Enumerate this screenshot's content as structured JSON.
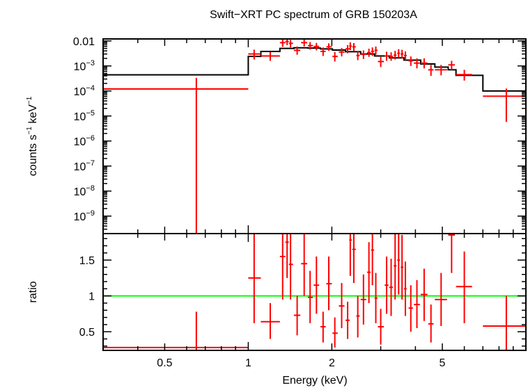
{
  "chart_data": {
    "type": "scatter",
    "title": "Swift−XRT PC spectrum of GRB 150203A",
    "xlabel": "Energy (keV)",
    "x_scale": "log",
    "xlim": [
      0.3,
      10
    ],
    "x_ticks": [
      {
        "v": 0.5,
        "label": "0.5"
      },
      {
        "v": 1,
        "label": "1"
      },
      {
        "v": 2,
        "label": "2"
      },
      {
        "v": 5,
        "label": "5"
      }
    ],
    "colors": {
      "data": "#ff0000",
      "model": "#000000",
      "unity": "#00ff00"
    },
    "panels": {
      "spectrum": {
        "ylabel_parts": {
          "a": "counts s",
          "a_sup": "−1",
          "b": " keV",
          "b_sup": "−1"
        },
        "y_scale": "log",
        "ylim": [
          2e-10,
          0.012
        ],
        "y_ticks": [
          {
            "v": 0.01,
            "label": "0.01"
          },
          {
            "v": 0.001,
            "base": "10",
            "exp": "−3"
          },
          {
            "v": 0.0001,
            "base": "10",
            "exp": "−4"
          },
          {
            "v": 1e-05,
            "base": "10",
            "exp": "−5"
          },
          {
            "v": 1e-06,
            "base": "10",
            "exp": "−6"
          },
          {
            "v": 1e-07,
            "base": "10",
            "exp": "−7"
          },
          {
            "v": 1e-08,
            "base": "10",
            "exp": "−8"
          },
          {
            "v": 1e-09,
            "base": "10",
            "exp": "−9"
          }
        ],
        "points": [
          {
            "x": 0.65,
            "xlo": 0.3,
            "xhi": 1.0,
            "y": 0.00012,
            "ylo": 2e-10,
            "yhi": 0.00033
          },
          {
            "x": 1.05,
            "xlo": 1.0,
            "xhi": 1.11,
            "y": 0.003,
            "ylo": 0.0018,
            "yhi": 0.0045
          },
          {
            "x": 1.2,
            "xlo": 1.11,
            "xhi": 1.3,
            "y": 0.0025,
            "ylo": 0.0016,
            "yhi": 0.0036
          },
          {
            "x": 1.33,
            "xlo": 1.3,
            "xhi": 1.36,
            "y": 0.0085,
            "ylo": 0.0058,
            "yhi": 0.0118
          },
          {
            "x": 1.38,
            "xlo": 1.36,
            "xhi": 1.4,
            "y": 0.0095,
            "ylo": 0.0068,
            "yhi": 0.0118
          },
          {
            "x": 1.42,
            "xlo": 1.4,
            "xhi": 1.45,
            "y": 0.008,
            "ylo": 0.0055,
            "yhi": 0.011
          },
          {
            "x": 1.5,
            "xlo": 1.46,
            "xhi": 1.54,
            "y": 0.0042,
            "ylo": 0.0028,
            "yhi": 0.006
          },
          {
            "x": 1.59,
            "xlo": 1.55,
            "xhi": 1.63,
            "y": 0.0085,
            "ylo": 0.006,
            "yhi": 0.0115
          },
          {
            "x": 1.67,
            "xlo": 1.64,
            "xhi": 1.71,
            "y": 0.0065,
            "ylo": 0.0045,
            "yhi": 0.009
          },
          {
            "x": 1.76,
            "xlo": 1.72,
            "xhi": 1.8,
            "y": 0.006,
            "ylo": 0.0042,
            "yhi": 0.0083
          },
          {
            "x": 1.86,
            "xlo": 1.82,
            "xhi": 1.9,
            "y": 0.0038,
            "ylo": 0.0025,
            "yhi": 0.0055
          },
          {
            "x": 1.95,
            "xlo": 1.91,
            "xhi": 2.0,
            "y": 0.0058,
            "ylo": 0.004,
            "yhi": 0.008
          },
          {
            "x": 2.05,
            "xlo": 2.01,
            "xhi": 2.1,
            "y": 0.0024,
            "ylo": 0.0015,
            "yhi": 0.0036
          },
          {
            "x": 2.17,
            "xlo": 2.12,
            "xhi": 2.22,
            "y": 0.0036,
            "ylo": 0.0024,
            "yhi": 0.0052
          },
          {
            "x": 2.28,
            "xlo": 2.24,
            "xhi": 2.32,
            "y": 0.0048,
            "ylo": 0.0032,
            "yhi": 0.0068
          },
          {
            "x": 2.33,
            "xlo": 2.31,
            "xhi": 2.36,
            "y": 0.0062,
            "ylo": 0.0043,
            "yhi": 0.0088
          },
          {
            "x": 2.4,
            "xlo": 2.37,
            "xhi": 2.44,
            "y": 0.0058,
            "ylo": 0.004,
            "yhi": 0.0082
          },
          {
            "x": 2.48,
            "xlo": 2.45,
            "xhi": 2.52,
            "y": 0.0026,
            "ylo": 0.0017,
            "yhi": 0.0038
          },
          {
            "x": 2.6,
            "xlo": 2.54,
            "xhi": 2.66,
            "y": 0.0029,
            "ylo": 0.0019,
            "yhi": 0.0042
          },
          {
            "x": 2.72,
            "xlo": 2.68,
            "xhi": 2.76,
            "y": 0.0034,
            "ylo": 0.0023,
            "yhi": 0.0049
          },
          {
            "x": 2.8,
            "xlo": 2.77,
            "xhi": 2.84,
            "y": 0.0038,
            "ylo": 0.0025,
            "yhi": 0.0055
          },
          {
            "x": 2.88,
            "xlo": 2.85,
            "xhi": 2.92,
            "y": 0.0042,
            "ylo": 0.0028,
            "yhi": 0.006
          },
          {
            "x": 3.0,
            "xlo": 2.93,
            "xhi": 3.08,
            "y": 0.0015,
            "ylo": 0.0009,
            "yhi": 0.0023
          },
          {
            "x": 3.15,
            "xlo": 3.1,
            "xhi": 3.2,
            "y": 0.0025,
            "ylo": 0.0016,
            "yhi": 0.0037
          },
          {
            "x": 3.27,
            "xlo": 3.22,
            "xhi": 3.32,
            "y": 0.0024,
            "ylo": 0.0016,
            "yhi": 0.0035
          },
          {
            "x": 3.38,
            "xlo": 3.34,
            "xhi": 3.42,
            "y": 0.0027,
            "ylo": 0.0018,
            "yhi": 0.004
          },
          {
            "x": 3.48,
            "xlo": 3.44,
            "xhi": 3.52,
            "y": 0.0032,
            "ylo": 0.0021,
            "yhi": 0.0047
          },
          {
            "x": 3.58,
            "xlo": 3.54,
            "xhi": 3.62,
            "y": 0.003,
            "ylo": 0.002,
            "yhi": 0.0044
          },
          {
            "x": 3.68,
            "xlo": 3.64,
            "xhi": 3.72,
            "y": 0.0026,
            "ylo": 0.0017,
            "yhi": 0.0038
          },
          {
            "x": 3.85,
            "xlo": 3.78,
            "xhi": 3.92,
            "y": 0.0016,
            "ylo": 0.001,
            "yhi": 0.0024
          },
          {
            "x": 4.05,
            "xlo": 3.95,
            "xhi": 4.15,
            "y": 0.0013,
            "ylo": 0.0008,
            "yhi": 0.002
          },
          {
            "x": 4.3,
            "xlo": 4.18,
            "xhi": 4.42,
            "y": 0.0013,
            "ylo": 0.0008,
            "yhi": 0.002
          },
          {
            "x": 4.55,
            "xlo": 4.45,
            "xhi": 4.65,
            "y": 0.0007,
            "ylo": 0.0004,
            "yhi": 0.0011
          },
          {
            "x": 4.95,
            "xlo": 4.7,
            "xhi": 5.2,
            "y": 0.0007,
            "ylo": 0.00042,
            "yhi": 0.0011
          },
          {
            "x": 5.4,
            "xlo": 5.25,
            "xhi": 5.55,
            "y": 0.0011,
            "ylo": 0.0007,
            "yhi": 0.0016
          },
          {
            "x": 6.0,
            "xlo": 5.6,
            "xhi": 6.4,
            "y": 0.00045,
            "ylo": 0.00026,
            "yhi": 0.0007
          },
          {
            "x": 8.5,
            "xlo": 7.0,
            "xhi": 10.0,
            "y": 6.2e-05,
            "ylo": 5.8e-06,
            "yhi": 0.000125
          }
        ],
        "model": [
          {
            "x0": 0.3,
            "x1": 1.0,
            "y": 0.00044
          },
          {
            "x0": 1.0,
            "x1": 1.11,
            "y": 0.0024
          },
          {
            "x0": 1.11,
            "x1": 1.3,
            "y": 0.0038
          },
          {
            "x0": 1.3,
            "x1": 1.46,
            "y": 0.005
          },
          {
            "x0": 1.46,
            "x1": 1.64,
            "y": 0.0053
          },
          {
            "x0": 1.64,
            "x1": 1.82,
            "y": 0.0052
          },
          {
            "x0": 1.82,
            "x1": 2.01,
            "y": 0.0048
          },
          {
            "x0": 2.01,
            "x1": 2.24,
            "y": 0.0043
          },
          {
            "x0": 2.24,
            "x1": 2.54,
            "y": 0.0037
          },
          {
            "x0": 2.54,
            "x1": 2.85,
            "y": 0.003
          },
          {
            "x0": 2.85,
            "x1": 3.22,
            "y": 0.0025
          },
          {
            "x0": 3.22,
            "x1": 3.64,
            "y": 0.0021
          },
          {
            "x0": 3.64,
            "x1": 4.18,
            "y": 0.0017
          },
          {
            "x0": 4.18,
            "x1": 4.7,
            "y": 0.0012
          },
          {
            "x0": 4.7,
            "x1": 5.25,
            "y": 0.0009
          },
          {
            "x0": 5.25,
            "x1": 5.6,
            "y": 0.0007
          },
          {
            "x0": 5.6,
            "x1": 7.0,
            "y": 0.00042
          },
          {
            "x0": 7.0,
            "x1": 10.0,
            "y": 0.0001
          }
        ]
      },
      "ratio": {
        "ylabel": "ratio",
        "y_scale": "linear",
        "ylim": [
          0.24,
          1.87
        ],
        "y_ticks": [
          {
            "v": 0.5,
            "label": "0.5"
          },
          {
            "v": 1,
            "label": "1"
          },
          {
            "v": 1.5,
            "label": "1.5"
          }
        ],
        "unity": 1.0,
        "points": [
          {
            "x": 0.65,
            "xlo": 0.3,
            "xhi": 1.0,
            "y": 0.28,
            "ylo": 0.24,
            "yhi": 0.78
          },
          {
            "x": 1.05,
            "xlo": 1.0,
            "xhi": 1.11,
            "y": 1.25,
            "ylo": 0.62,
            "yhi": 1.87
          },
          {
            "x": 1.2,
            "xlo": 1.11,
            "xhi": 1.3,
            "y": 0.64,
            "ylo": 0.4,
            "yhi": 0.9
          },
          {
            "x": 1.33,
            "xlo": 1.3,
            "xhi": 1.36,
            "y": 1.55,
            "ylo": 0.95,
            "yhi": 1.87
          },
          {
            "x": 1.38,
            "xlo": 1.36,
            "xhi": 1.4,
            "y": 1.75,
            "ylo": 1.25,
            "yhi": 1.87
          },
          {
            "x": 1.42,
            "xlo": 1.4,
            "xhi": 1.45,
            "y": 1.44,
            "ylo": 0.95,
            "yhi": 1.87
          },
          {
            "x": 1.5,
            "xlo": 1.46,
            "xhi": 1.54,
            "y": 0.73,
            "ylo": 0.45,
            "yhi": 1.0
          },
          {
            "x": 1.59,
            "xlo": 1.55,
            "xhi": 1.63,
            "y": 1.45,
            "ylo": 1.0,
            "yhi": 1.87
          },
          {
            "x": 1.67,
            "xlo": 1.64,
            "xhi": 1.71,
            "y": 0.98,
            "ylo": 0.62,
            "yhi": 1.35
          },
          {
            "x": 1.76,
            "xlo": 1.72,
            "xhi": 1.8,
            "y": 1.15,
            "ylo": 0.75,
            "yhi": 1.55
          },
          {
            "x": 1.86,
            "xlo": 1.82,
            "xhi": 1.9,
            "y": 0.57,
            "ylo": 0.35,
            "yhi": 0.78
          },
          {
            "x": 1.95,
            "xlo": 1.91,
            "xhi": 2.0,
            "y": 1.17,
            "ylo": 0.8,
            "yhi": 1.55
          },
          {
            "x": 2.05,
            "xlo": 2.01,
            "xhi": 2.1,
            "y": 0.48,
            "ylo": 0.28,
            "yhi": 0.7
          },
          {
            "x": 2.17,
            "xlo": 2.12,
            "xhi": 2.22,
            "y": 0.86,
            "ylo": 0.55,
            "yhi": 1.18
          },
          {
            "x": 2.28,
            "xlo": 2.24,
            "xhi": 2.32,
            "y": 0.66,
            "ylo": 0.4,
            "yhi": 0.92
          },
          {
            "x": 2.33,
            "xlo": 2.31,
            "xhi": 2.36,
            "y": 1.78,
            "ylo": 1.28,
            "yhi": 1.87
          },
          {
            "x": 2.4,
            "xlo": 2.37,
            "xhi": 2.44,
            "y": 1.65,
            "ylo": 1.18,
            "yhi": 1.87
          },
          {
            "x": 2.48,
            "xlo": 2.45,
            "xhi": 2.52,
            "y": 0.72,
            "ylo": 0.42,
            "yhi": 1.0
          },
          {
            "x": 2.6,
            "xlo": 2.54,
            "xhi": 2.66,
            "y": 0.95,
            "ylo": 0.6,
            "yhi": 1.3
          },
          {
            "x": 2.72,
            "xlo": 2.68,
            "xhi": 2.76,
            "y": 1.33,
            "ylo": 0.9,
            "yhi": 1.75
          },
          {
            "x": 2.8,
            "xlo": 2.77,
            "xhi": 2.84,
            "y": 1.64,
            "ylo": 1.15,
            "yhi": 1.87
          },
          {
            "x": 2.88,
            "xlo": 2.85,
            "xhi": 2.92,
            "y": 0.97,
            "ylo": 0.62,
            "yhi": 1.32
          },
          {
            "x": 3.0,
            "xlo": 2.93,
            "xhi": 3.08,
            "y": 0.57,
            "ylo": 0.32,
            "yhi": 0.82
          },
          {
            "x": 3.15,
            "xlo": 3.1,
            "xhi": 3.2,
            "y": 1.15,
            "ylo": 0.75,
            "yhi": 1.55
          },
          {
            "x": 3.27,
            "xlo": 3.22,
            "xhi": 3.32,
            "y": 1.12,
            "ylo": 0.72,
            "yhi": 1.52
          },
          {
            "x": 3.38,
            "xlo": 3.34,
            "xhi": 3.42,
            "y": 1.42,
            "ylo": 0.95,
            "yhi": 1.87
          },
          {
            "x": 3.48,
            "xlo": 3.44,
            "xhi": 3.52,
            "y": 1.5,
            "ylo": 1.02,
            "yhi": 1.87
          },
          {
            "x": 3.58,
            "xlo": 3.54,
            "xhi": 3.62,
            "y": 1.4,
            "ylo": 0.95,
            "yhi": 1.85
          },
          {
            "x": 3.68,
            "xlo": 3.64,
            "xhi": 3.72,
            "y": 1.1,
            "ylo": 0.72,
            "yhi": 1.48
          },
          {
            "x": 3.85,
            "xlo": 3.78,
            "xhi": 3.92,
            "y": 0.83,
            "ylo": 0.5,
            "yhi": 1.15
          },
          {
            "x": 4.05,
            "xlo": 3.95,
            "xhi": 4.15,
            "y": 0.88,
            "ylo": 0.55,
            "yhi": 1.22
          },
          {
            "x": 4.3,
            "xlo": 4.18,
            "xhi": 4.42,
            "y": 1.02,
            "ylo": 0.65,
            "yhi": 1.38
          },
          {
            "x": 4.55,
            "xlo": 4.45,
            "xhi": 4.65,
            "y": 0.61,
            "ylo": 0.35,
            "yhi": 0.88
          },
          {
            "x": 4.95,
            "xlo": 4.7,
            "xhi": 5.2,
            "y": 0.95,
            "ylo": 0.58,
            "yhi": 1.32
          },
          {
            "x": 5.4,
            "xlo": 5.25,
            "xhi": 5.55,
            "y": 1.85,
            "ylo": 1.32,
            "yhi": 1.87
          },
          {
            "x": 6.0,
            "xlo": 5.6,
            "xhi": 6.4,
            "y": 1.13,
            "ylo": 0.62,
            "yhi": 1.62
          },
          {
            "x": 8.5,
            "xlo": 7.0,
            "xhi": 10.0,
            "y": 0.58,
            "ylo": 0.24,
            "yhi": 1.0
          }
        ]
      }
    }
  }
}
